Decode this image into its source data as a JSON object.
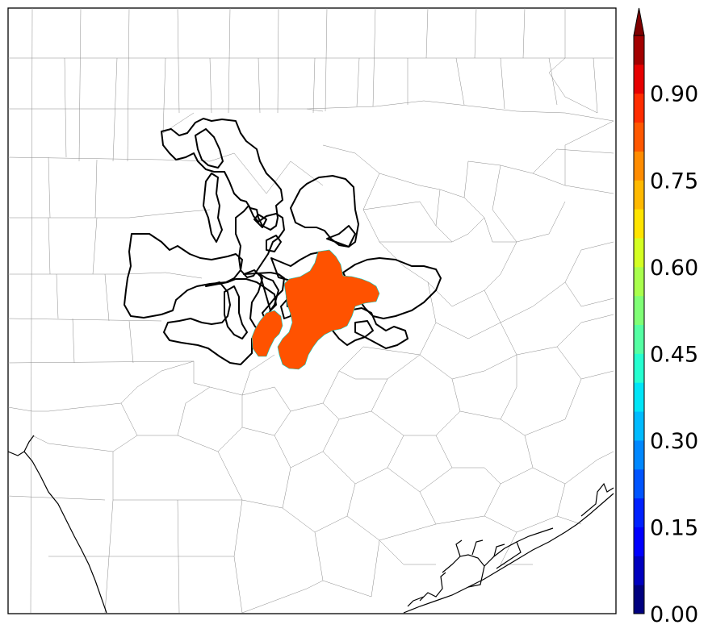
{
  "colorbar": {
    "tick_labels": [
      "0.00",
      "0.15",
      "0.30",
      "0.45",
      "0.60",
      "0.75",
      "0.90"
    ],
    "levels": [
      0.0,
      0.05,
      0.1,
      0.15,
      0.2,
      0.25,
      0.3,
      0.35,
      0.4,
      0.45,
      0.5,
      0.55,
      0.6,
      0.65,
      0.7,
      0.75,
      0.8,
      0.85,
      0.9,
      0.95,
      1.0
    ],
    "colors": [
      "#00007f",
      "#0000bf",
      "#0000ff",
      "#0022ff",
      "#0055ff",
      "#0088ff",
      "#00bbff",
      "#00e5f7",
      "#26ffd0",
      "#55ffa3",
      "#80ff76",
      "#a9ff4d",
      "#d4ff23",
      "#ffe400",
      "#ffb900",
      "#ff8c00",
      "#ff5800",
      "#ff2d00",
      "#e60000",
      "#a30000"
    ],
    "extend": "max",
    "extend_color": "#7f0000"
  },
  "probability_field": {
    "fill_color": "#ff5200",
    "value_bin": "0.80–0.85"
  }
}
